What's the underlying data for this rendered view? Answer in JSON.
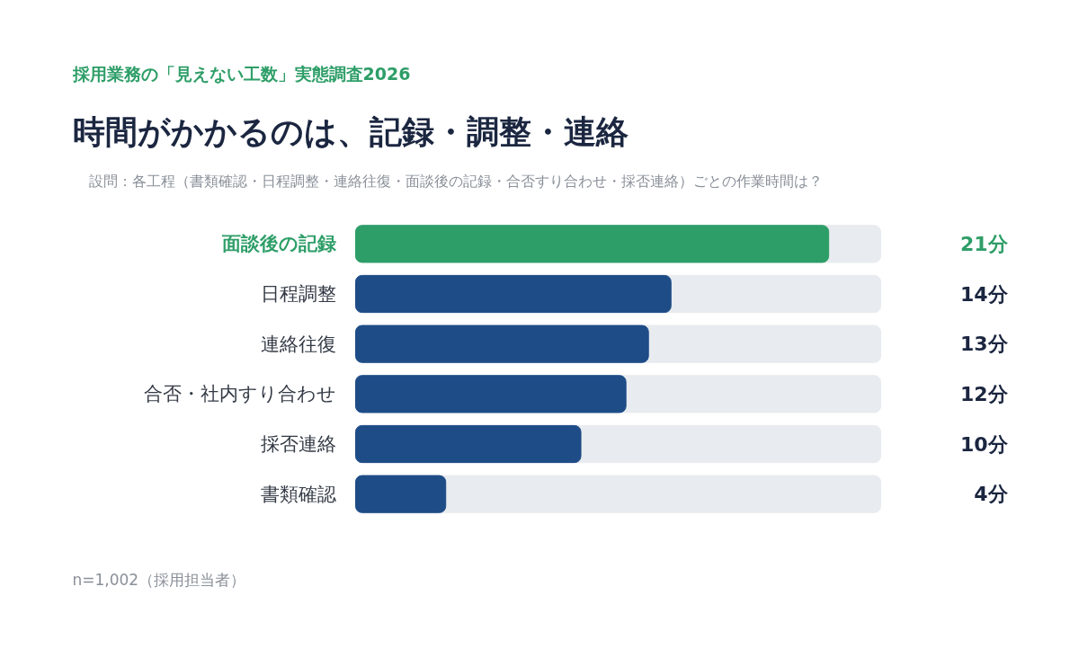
{
  "chart_data": {
    "type": "bar",
    "orientation": "horizontal",
    "subtitle": "採用業務の「見えない工数」実態調査2026",
    "title": "時間がかかるのは、記録・調整・連絡",
    "annotations": [
      "設問：各工程（書類確認・日程調整・連絡往復・面談後の記録・合否すり合わせ・採否連絡）ごとの作業時間は？",
      "n=1,002（採用担当者）"
    ],
    "categories": [
      "面談後の記録",
      "日程調整",
      "連絡往復",
      "合否・社内すり合わせ",
      "採否連絡",
      "書類確認"
    ],
    "values": [
      21,
      14,
      13,
      12,
      10,
      4
    ],
    "colors": [
      "#2e9e68",
      "#1e4c87",
      "#1e4c87",
      "#1e4c87",
      "#1e4c87",
      "#1e4c87"
    ],
    "value_labels": [
      "21分",
      "14分",
      "13分",
      "12分",
      "10分",
      "4分"
    ],
    "grid": false
  }
}
